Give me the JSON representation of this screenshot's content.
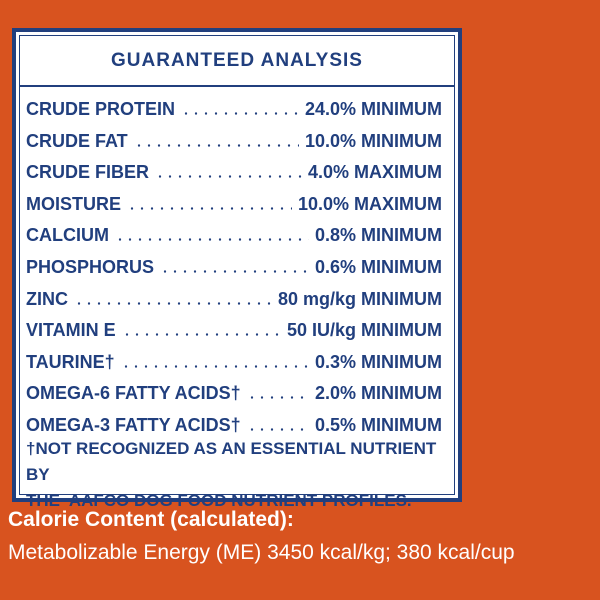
{
  "header": {
    "title": "GUARANTEED ANALYSIS"
  },
  "rows": [
    {
      "name": "CRUDE PROTEIN",
      "value": "24.0% MINIMUM"
    },
    {
      "name": "CRUDE FAT",
      "value": "10.0% MINIMUM"
    },
    {
      "name": "CRUDE FIBER",
      "value": "4.0% MAXIMUM"
    },
    {
      "name": "MOISTURE",
      "value": "10.0% MAXIMUM"
    },
    {
      "name": "CALCIUM",
      "value": "0.8% MINIMUM"
    },
    {
      "name": "PHOSPHORUS",
      "value": "0.6% MINIMUM"
    },
    {
      "name": "ZINC",
      "value": "80 mg/kg MINIMUM"
    },
    {
      "name": "VITAMIN E",
      "value": "50 IU/kg MINIMUM"
    },
    {
      "name": "TAURINE†",
      "value": "0.3% MINIMUM"
    },
    {
      "name": "OMEGA-6 FATTY ACIDS†",
      "value": "2.0% MINIMUM"
    },
    {
      "name": "OMEGA-3 FATTY ACIDS†",
      "value": "0.5% MINIMUM"
    }
  ],
  "footnote": [
    "†NOT RECOGNIZED AS AN ESSENTIAL NUTRIENT BY",
    "THE  AAFCO DOG FOOD NUTRIENT PROFILES."
  ],
  "calorie": {
    "heading": "Calorie Content (calculated):",
    "text": "Metabolizable Energy (ME) 3450 kcal/kg; 380 kcal/cup"
  }
}
